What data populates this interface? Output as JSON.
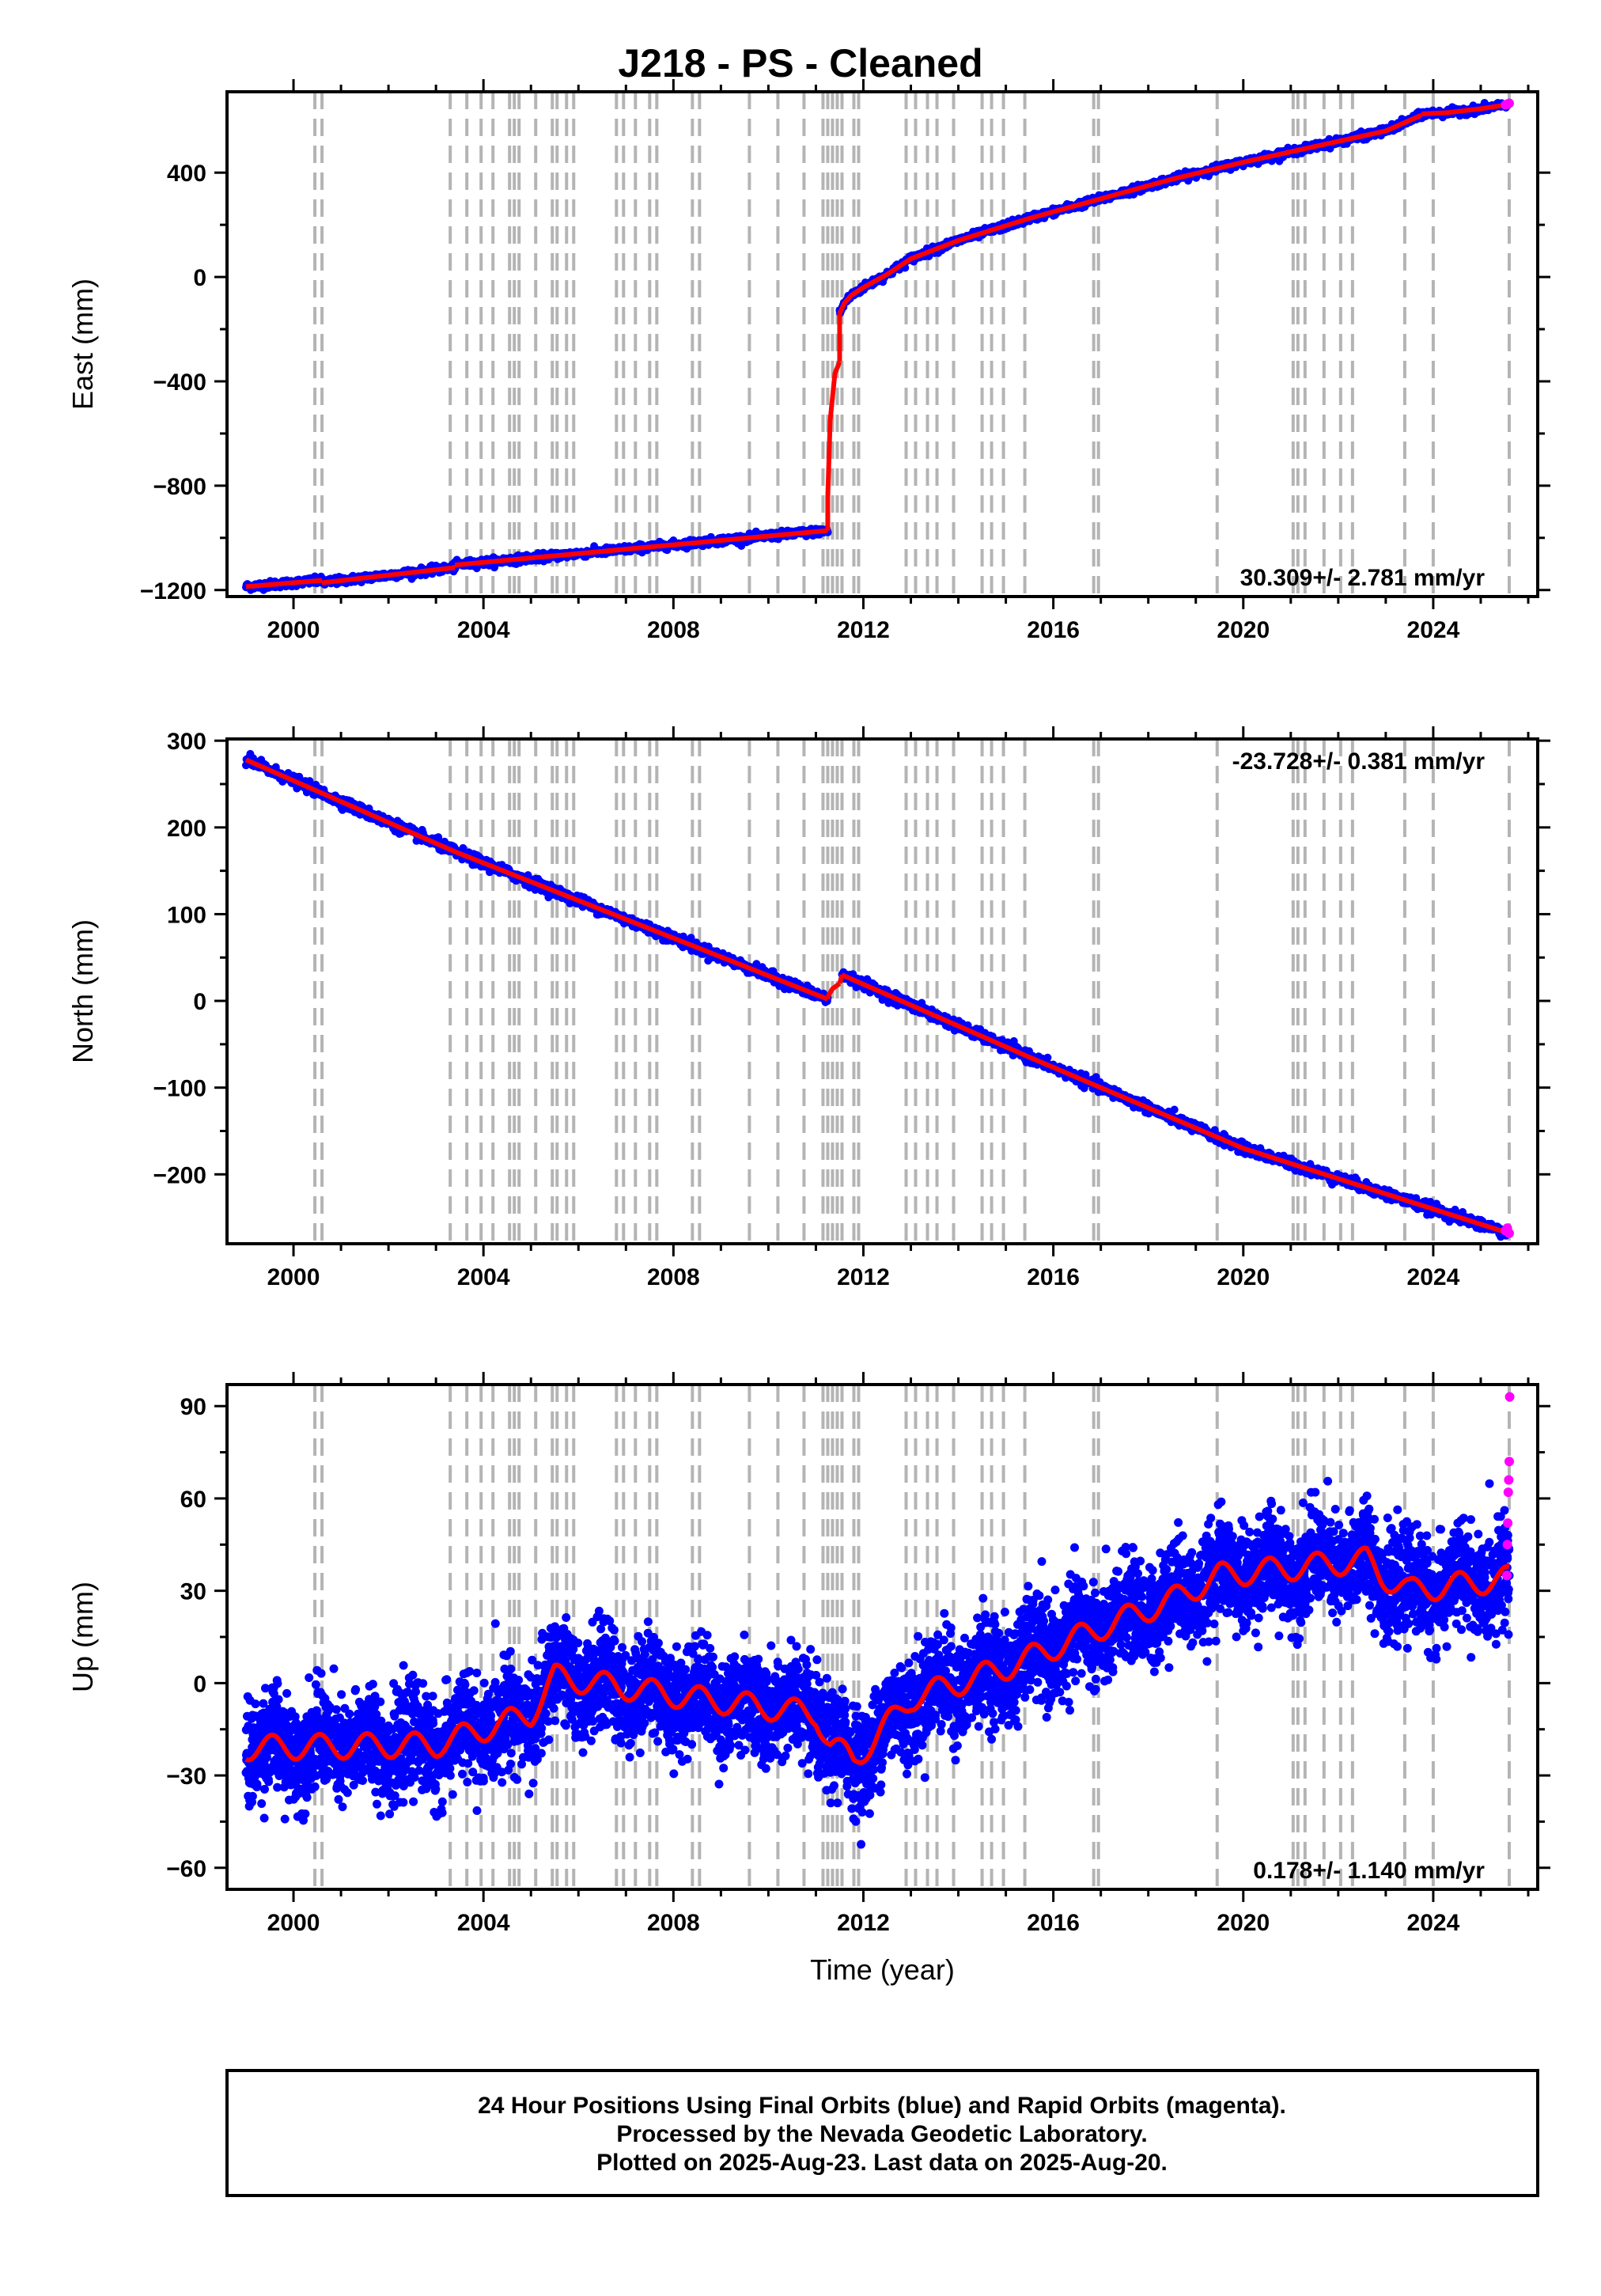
{
  "title": "J218  - PS - Cleaned",
  "footer": {
    "line1": "24 Hour Positions Using Final Orbits (blue) and Rapid Orbits (magenta).",
    "line2": "Processed by the Nevada Geodetic Laboratory.",
    "line3": "Plotted on 2025-Aug-23. Last data on 2025-Aug-20."
  },
  "colors": {
    "final_orbits": "#0000ff",
    "rapid_orbits": "#ff00ff",
    "model_fit": "#ff0000",
    "event_lines": "#b4b4b4"
  },
  "chart_data": [
    {
      "type": "scatter",
      "panel": "east",
      "ylabel": "East (mm)",
      "xlabel": "",
      "rate_text": "30.309+/- 2.781 mm/yr",
      "xlim": [
        1998.6,
        2026.2
      ],
      "ylim": [
        -1225,
        710
      ],
      "xticks": [
        2000,
        2004,
        2008,
        2012,
        2016,
        2020,
        2024
      ],
      "yticks": [
        -1200,
        -800,
        -400,
        0,
        400
      ],
      "ytick_labels": [
        "−1200",
        "−800",
        "−400",
        "0",
        "400"
      ],
      "grid": false,
      "event_lines": [
        2000.45,
        2000.6,
        2003.3,
        2003.65,
        2003.95,
        2004.2,
        2004.55,
        2004.65,
        2004.75,
        2005.1,
        2005.45,
        2005.55,
        2005.75,
        2005.9,
        2006.8,
        2006.95,
        2007.2,
        2007.5,
        2007.65,
        2008.4,
        2008.55,
        2009.6,
        2010.2,
        2010.75,
        2011.15,
        2011.25,
        2011.35,
        2011.45,
        2011.55,
        2011.8,
        2011.9,
        2012.9,
        2013.1,
        2013.35,
        2013.55,
        2013.9,
        2014.5,
        2014.7,
        2014.95,
        2015.4,
        2016.85,
        2016.95,
        2019.45,
        2021.05,
        2021.15,
        2021.3,
        2021.7,
        2022.05,
        2022.3,
        2023.4,
        2024.0,
        2025.6
      ],
      "segments": [
        {
          "x": [
            1999.0,
            2000.6
          ],
          "y": [
            -1187,
            -1163
          ]
        },
        {
          "x": [
            2000.6,
            2003.4
          ],
          "y": [
            -1172,
            -1114
          ]
        },
        {
          "x": [
            2003.4,
            2011.25
          ],
          "y": [
            -1104,
            -972
          ]
        },
        {
          "x": [
            2011.25,
            2011.3,
            2011.4,
            2011.5
          ],
          "y": [
            -840,
            -550,
            -370,
            -325
          ]
        },
        {
          "x": [
            2011.5,
            2011.6,
            2011.75,
            2012.0,
            2012.5,
            2013.0,
            2014.0,
            2015.5,
            2017.0,
            2018.5,
            2020.0,
            2021.5,
            2023.0,
            2023.75
          ],
          "y": [
            -140,
            -100,
            -70,
            -40,
            10,
            70,
            140,
            225,
            300,
            375,
            440,
            500,
            560,
            620
          ]
        },
        {
          "x": [
            2023.75,
            2024.3,
            2025.0,
            2025.55
          ],
          "y": [
            625,
            630,
            645,
            660
          ]
        }
      ],
      "noise_mm": 7,
      "rapid_points": {
        "x": [
          2025.52,
          2025.55,
          2025.58,
          2025.6
        ],
        "y": [
          660,
          662,
          664,
          666
        ]
      }
    },
    {
      "type": "scatter",
      "panel": "north",
      "ylabel": "North (mm)",
      "xlabel": "",
      "rate_text": "-23.728+/- 0.381 mm/yr",
      "xlim": [
        1998.6,
        2026.2
      ],
      "ylim": [
        -280,
        302
      ],
      "xticks": [
        2000,
        2004,
        2008,
        2012,
        2016,
        2020,
        2024
      ],
      "yticks": [
        -200,
        -100,
        0,
        100,
        200,
        300
      ],
      "ytick_labels": [
        "−200",
        "−100",
        "0",
        "100",
        "200",
        "300"
      ],
      "grid": false,
      "segments": [
        {
          "x": [
            1999.0,
            2003.4,
            2011.25
          ],
          "y": [
            278,
            172,
            2
          ]
        },
        {
          "x": [
            2011.25,
            2011.35,
            2011.5
          ],
          "y": [
            5,
            14,
            20
          ]
        },
        {
          "x": [
            2011.5,
            2011.55
          ],
          "y": [
            20,
            30
          ]
        },
        {
          "x": [
            2011.55,
            2015.5,
            2020.0,
            2025.6
          ],
          "y": [
            30,
            -65,
            -170,
            -268
          ]
        }
      ],
      "noise_mm": 3,
      "rapid_points": {
        "x": [
          2025.52,
          2025.56,
          2025.6
        ],
        "y": [
          -265,
          -262,
          -268
        ]
      }
    },
    {
      "type": "scatter",
      "panel": "up",
      "ylabel": "Up (mm)",
      "xlabel": "Time (year)",
      "rate_text": "0.178+/- 1.140 mm/yr",
      "xlim": [
        1998.6,
        2026.2
      ],
      "ylim": [
        -67,
        97
      ],
      "xticks": [
        2000,
        2004,
        2008,
        2012,
        2016,
        2020,
        2024
      ],
      "yticks": [
        -60,
        -30,
        0,
        30,
        60,
        90
      ],
      "ytick_labels": [
        "−60",
        "−30",
        "0",
        "30",
        "60",
        "90"
      ],
      "grid": false,
      "trend": {
        "x": [
          1999.0,
          2003.0,
          2005.0,
          2005.5,
          2008.5,
          2011.0,
          2011.3,
          2011.8,
          2012.3,
          2013.0,
          2015.0,
          2017.0,
          2018.5,
          2019.5,
          2022.6,
          2022.9,
          2023.5,
          2025.6
        ],
        "y": [
          -21,
          -20,
          -10,
          2,
          -5,
          -10,
          -20,
          -25,
          -17,
          -5,
          5,
          18,
          27,
          35,
          40,
          35,
          30,
          34
        ]
      },
      "seasonal_amplitude_mm": 4,
      "scatter_sd_mm": 8,
      "rapid_points": {
        "x": [
          2025.55,
          2025.56,
          2025.57,
          2025.58,
          2025.59,
          2025.6,
          2025.61
        ],
        "y": [
          35,
          45,
          52,
          62,
          66,
          72,
          93
        ]
      }
    }
  ]
}
